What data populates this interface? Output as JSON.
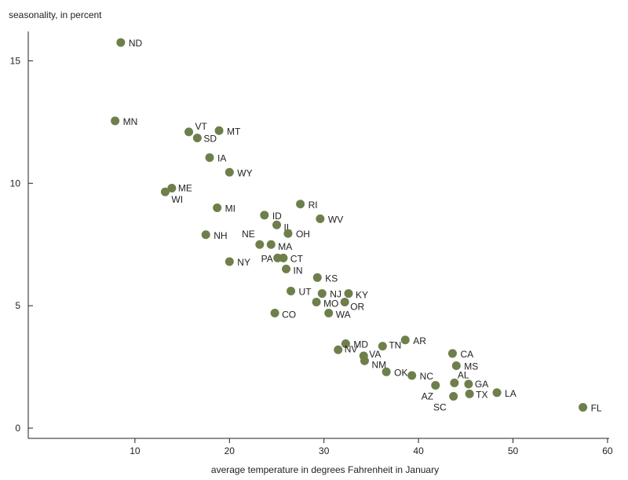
{
  "chart_data": {
    "type": "scatter",
    "ylabel": "seasonality, in percent",
    "xlabel": "average temperature in degrees Fahrenheit in January",
    "xlim": [
      0,
      60
    ],
    "ylim": [
      0,
      16
    ],
    "xticks": [
      10,
      20,
      30,
      40,
      50,
      60
    ],
    "yticks": [
      0,
      5,
      10,
      15
    ],
    "grid": false,
    "marker_color": "#6e7f4b",
    "points": [
      {
        "label": "ND",
        "x": 8.5,
        "y": 15.75
      },
      {
        "label": "MN",
        "x": 7.9,
        "y": 12.55
      },
      {
        "label": "VT",
        "x": 15.7,
        "y": 12.1
      },
      {
        "label": "MT",
        "x": 18.9,
        "y": 12.15
      },
      {
        "label": "SD",
        "x": 16.6,
        "y": 11.85
      },
      {
        "label": "IA",
        "x": 17.9,
        "y": 11.05
      },
      {
        "label": "WY",
        "x": 20.0,
        "y": 10.45
      },
      {
        "label": "ME",
        "x": 13.9,
        "y": 9.8
      },
      {
        "label": "WI",
        "x": 13.2,
        "y": 9.65
      },
      {
        "label": "MI",
        "x": 18.7,
        "y": 9.0
      },
      {
        "label": "RI",
        "x": 27.5,
        "y": 9.15
      },
      {
        "label": "ID",
        "x": 23.7,
        "y": 8.7
      },
      {
        "label": "WV",
        "x": 29.6,
        "y": 8.55
      },
      {
        "label": "IL",
        "x": 25.0,
        "y": 8.3
      },
      {
        "label": "NH",
        "x": 17.5,
        "y": 7.9
      },
      {
        "label": "OH",
        "x": 26.2,
        "y": 7.95
      },
      {
        "label": "NE",
        "x": 23.2,
        "y": 7.5
      },
      {
        "label": "MA",
        "x": 24.4,
        "y": 7.5
      },
      {
        "label": "NY",
        "x": 20.0,
        "y": 6.8
      },
      {
        "label": "PA",
        "x": 25.1,
        "y": 6.95
      },
      {
        "label": "CT",
        "x": 25.7,
        "y": 6.95
      },
      {
        "label": "IN",
        "x": 26.0,
        "y": 6.5
      },
      {
        "label": "KS",
        "x": 29.3,
        "y": 6.15
      },
      {
        "label": "UT",
        "x": 26.5,
        "y": 5.6
      },
      {
        "label": "NJ",
        "x": 29.8,
        "y": 5.5
      },
      {
        "label": "KY",
        "x": 32.6,
        "y": 5.5
      },
      {
        "label": "MO",
        "x": 29.2,
        "y": 5.15
      },
      {
        "label": "OR",
        "x": 32.2,
        "y": 5.15
      },
      {
        "label": "CO",
        "x": 24.8,
        "y": 4.7
      },
      {
        "label": "WA",
        "x": 30.5,
        "y": 4.7
      },
      {
        "label": "MD",
        "x": 32.3,
        "y": 3.45
      },
      {
        "label": "AR",
        "x": 38.6,
        "y": 3.6
      },
      {
        "label": "TN",
        "x": 36.2,
        "y": 3.35
      },
      {
        "label": "NV",
        "x": 31.5,
        "y": 3.2
      },
      {
        "label": "VA",
        "x": 34.2,
        "y": 2.95
      },
      {
        "label": "NM",
        "x": 34.3,
        "y": 2.75
      },
      {
        "label": "CA",
        "x": 43.6,
        "y": 3.05
      },
      {
        "label": "MS",
        "x": 44.0,
        "y": 2.55
      },
      {
        "label": "OK",
        "x": 36.6,
        "y": 2.3
      },
      {
        "label": "NC",
        "x": 39.3,
        "y": 2.15
      },
      {
        "label": "AL",
        "x": 43.8,
        "y": 1.85
      },
      {
        "label": "AZ",
        "x": 41.8,
        "y": 1.75
      },
      {
        "label": "GA",
        "x": 45.3,
        "y": 1.8
      },
      {
        "label": "LA",
        "x": 48.3,
        "y": 1.45
      },
      {
        "label": "TX",
        "x": 45.4,
        "y": 1.4
      },
      {
        "label": "SC",
        "x": 43.7,
        "y": 1.3
      },
      {
        "label": "FL",
        "x": 57.4,
        "y": 0.85
      }
    ]
  }
}
